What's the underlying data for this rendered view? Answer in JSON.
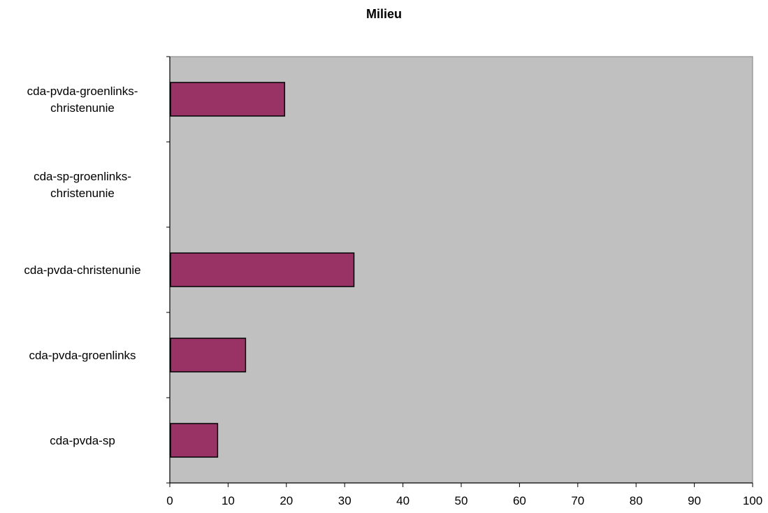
{
  "chart_data": {
    "type": "bar",
    "orientation": "horizontal",
    "title": "Milieu",
    "xlabel": "",
    "ylabel": "",
    "categories": [
      [
        "cda-pvda-groenlinks-",
        "christenunie"
      ],
      [
        "cda-sp-groenlinks-",
        "christenunie"
      ],
      [
        "cda-pvda-christenunie"
      ],
      [
        "cda-pvda-groenlinks"
      ],
      [
        "cda-pvda-sp"
      ]
    ],
    "values": [
      19.7,
      0,
      31.6,
      13,
      8.2
    ],
    "xlim": [
      0,
      100
    ],
    "xticks": [
      "0",
      "10",
      "20",
      "30",
      "40",
      "50",
      "60",
      "70",
      "80",
      "90",
      "100"
    ],
    "grid": false,
    "legend": "none",
    "colors": {
      "bar_fill": "#993366",
      "bar_stroke": "#000000",
      "plot_background": "#c0c0c0",
      "plot_border": "#808080",
      "axis": "#000000"
    }
  }
}
